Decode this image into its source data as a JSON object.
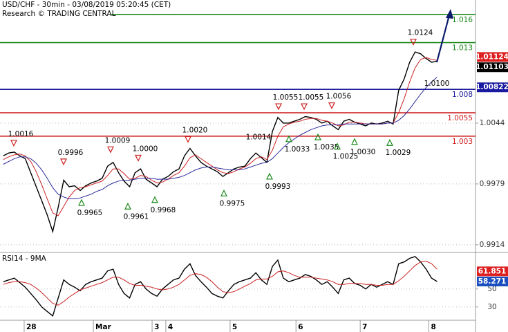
{
  "header": {
    "title": "USD/CHF - 30min - 03/08/2019 05:20:45 (CET)",
    "subtitle": "Research © TRADING CENTRAL"
  },
  "chart_data": [
    {
      "type": "line",
      "xlim": [
        -0.6,
        86
      ],
      "ylim": [
        0.99065,
        1.01755
      ],
      "yticks": [
        1.0044,
        0.9979,
        0.9914
      ],
      "grid": true,
      "series": [
        {
          "color": "#000000",
          "values": [
            1.0009,
            1.0012,
            1.0013,
            1.0009,
            1.0006,
            0.9991,
            0.9976,
            0.9961,
            0.9946,
            0.9928,
            0.9954,
            0.9983,
            0.9976,
            0.9977,
            0.9972,
            0.9977,
            0.998,
            0.9982,
            0.9985,
            0.9998,
            1.0002,
            0.9991,
            0.9982,
            0.9976,
            0.9991,
            0.9995,
            0.9984,
            0.998,
            0.9976,
            0.9984,
            0.9987,
            0.9992,
            0.9995,
            1.0009,
            1.0017,
            1.0009,
            1.0002,
            0.9998,
            0.9995,
            0.9992,
            0.9987,
            0.9991,
            0.9995,
            0.9997,
            0.9998,
            1.0006,
            1.0012,
            1.0007,
            1.0002,
            1.0035,
            1.005,
            1.0044,
            1.0044,
            1.0046,
            1.0048,
            1.0051,
            1.005,
            1.0048,
            1.0044,
            1.0046,
            1.0041,
            1.0037,
            1.0046,
            1.0048,
            1.0045,
            1.0043,
            1.0041,
            1.0044,
            1.0043,
            1.0044,
            1.0046,
            1.0043,
            1.0079,
            1.0091,
            1.0109,
            1.012,
            1.0118,
            1.0113,
            1.0109,
            1.011
          ]
        },
        {
          "color": "#cc2020",
          "values": [
            1.0005,
            1.0008,
            1.001,
            1.0011,
            1.0009,
            1.0003,
            0.9992,
            0.9978,
            0.9963,
            0.9948,
            0.9945,
            0.9955,
            0.9965,
            0.9972,
            0.9975,
            0.9976,
            0.9978,
            0.998,
            0.9982,
            0.9988,
            0.9995,
            0.9995,
            0.999,
            0.9984,
            0.9985,
            0.9988,
            0.9987,
            0.9983,
            0.998,
            0.9981,
            0.9984,
            0.9988,
            0.9991,
            0.9998,
            1.0007,
            1.001,
            1.0006,
            1.0002,
            0.9998,
            0.9994,
            0.9991,
            0.999,
            0.9992,
            0.9995,
            0.9997,
            1.0001,
            1.0006,
            1.0008,
            1.0005,
            1.0015,
            1.003,
            1.004,
            1.0043,
            1.0045,
            1.0046,
            1.0048,
            1.0049,
            1.0049,
            1.0047,
            1.0046,
            1.0044,
            1.0041,
            1.0042,
            1.0045,
            1.0045,
            1.0044,
            1.0043,
            1.0043,
            1.0043,
            1.0043,
            1.0044,
            1.0044,
            1.0055,
            1.007,
            1.0088,
            1.0103,
            1.0112,
            1.0114,
            1.0112,
            1.0111
          ]
        },
        {
          "color": "#2a2a9a",
          "values": [
            1.0,
            1.0003,
            1.0006,
            1.0008,
            1.0008,
            1.0006,
            1.0001,
            0.9994,
            0.9985,
            0.9975,
            0.9968,
            0.9965,
            0.9963,
            0.9963,
            0.9964,
            0.9966,
            0.9968,
            0.9971,
            0.9973,
            0.9977,
            0.998,
            0.9982,
            0.9983,
            0.9983,
            0.9984,
            0.9985,
            0.9985,
            0.9985,
            0.9984,
            0.9984,
            0.9984,
            0.9985,
            0.9986,
            0.9988,
            0.9991,
            0.9994,
            0.9996,
            0.9997,
            0.9997,
            0.9996,
            0.9995,
            0.9994,
            0.9994,
            0.9994,
            0.9995,
            0.9997,
            0.9999,
            1.0001,
            1.0002,
            1.0006,
            1.0012,
            1.0018,
            1.0023,
            1.0027,
            1.0031,
            1.0034,
            1.0037,
            1.0039,
            1.0041,
            1.0042,
            1.0042,
            1.0042,
            1.0043,
            1.0043,
            1.0043,
            1.0043,
            1.0043,
            1.0043,
            1.0043,
            1.0043,
            1.0044,
            1.0044,
            1.0047,
            1.0052,
            1.0059,
            1.0067,
            1.0075,
            1.0082,
            1.0088,
            1.0093
          ]
        }
      ],
      "levels": [
        {
          "value": 1.016,
          "color": "#1a8a1a"
        },
        {
          "value": 1.013,
          "color": "#1a8a1a"
        },
        {
          "value": 1.008,
          "color": "#1a1a9a"
        },
        {
          "value": 1.0055,
          "color": "#cc1a1a"
        },
        {
          "value": 1.003,
          "color": "#cc1a1a"
        }
      ],
      "price_boxes": [
        {
          "value": 1.01124,
          "color": "#dd2020"
        },
        {
          "value": 1.01103,
          "color": "#000000"
        },
        {
          "value": 1.00822,
          "color": "#1a1aa0"
        }
      ],
      "annotations": [
        {
          "value": 1.0016,
          "label": "1.0016"
        },
        {
          "value": 0.9996,
          "label": "0.9996"
        },
        {
          "value": 1.0009,
          "label": "1.0009"
        },
        {
          "value": 1.0,
          "label": "1.0000"
        },
        {
          "value": 1.002,
          "label": "1.0020"
        },
        {
          "value": 1.0014,
          "label": "1.0014"
        },
        {
          "value": 1.0055,
          "label": "1.0055"
        },
        {
          "value": 1.0055,
          "label": "1.0055"
        },
        {
          "value": 1.0056,
          "label": "1.0056"
        },
        {
          "value": 1.0124,
          "label": "1.0124"
        },
        {
          "value": 1.01,
          "label": "1.0100"
        },
        {
          "value": 0.9965,
          "label": "0.9965"
        },
        {
          "value": 0.9961,
          "label": "0.9961"
        },
        {
          "value": 0.9968,
          "label": "0.9968"
        },
        {
          "value": 0.9975,
          "label": "0.9975"
        },
        {
          "value": 0.9993,
          "label": "0.9993"
        },
        {
          "value": 1.0033,
          "label": "1.0033"
        },
        {
          "value": 1.0035,
          "label": "1.0035"
        },
        {
          "value": 1.0025,
          "label": "1.0025"
        },
        {
          "value": 1.003,
          "label": "1.0030"
        },
        {
          "value": 1.0029,
          "label": "1.0029"
        }
      ]
    },
    {
      "type": "line",
      "title": "RSI14 - 9MA",
      "xlim": [
        -0.6,
        86
      ],
      "ylim": [
        16,
        89
      ],
      "yticks": [
        30,
        50
      ],
      "grid": true,
      "xticks": [
        {
          "value": 3.8,
          "label": "28"
        },
        {
          "value": 16.4,
          "label": "Mar"
        },
        {
          "value": 27.1,
          "label": "3"
        },
        {
          "value": 29.6,
          "label": "4"
        },
        {
          "value": 41.3,
          "label": "5"
        },
        {
          "value": 53.3,
          "label": "6"
        },
        {
          "value": 65,
          "label": "7"
        },
        {
          "value": 77.5,
          "label": "8"
        }
      ],
      "series": [
        {
          "color": "#000000",
          "values": [
            58,
            60,
            62,
            57,
            52,
            45,
            38,
            30,
            25,
            20,
            40,
            60,
            55,
            52,
            48,
            55,
            58,
            60,
            62,
            70,
            72,
            55,
            45,
            40,
            55,
            58,
            50,
            45,
            42,
            50,
            55,
            60,
            62,
            72,
            78,
            65,
            58,
            52,
            45,
            42,
            40,
            48,
            55,
            58,
            60,
            62,
            68,
            60,
            55,
            75,
            82,
            62,
            58,
            60,
            62,
            66,
            64,
            60,
            55,
            58,
            52,
            45,
            60,
            62,
            56,
            54,
            50,
            55,
            52,
            55,
            58,
            55,
            78,
            80,
            84,
            86,
            80,
            72,
            62,
            58.271
          ]
        },
        {
          "color": "#cc2020",
          "values": [
            55,
            57,
            58,
            58,
            57,
            55,
            51,
            46,
            40,
            34,
            32,
            36,
            41,
            45,
            49,
            51,
            53,
            55,
            57,
            60,
            63,
            63,
            60,
            56,
            54,
            54,
            53,
            52,
            50,
            49,
            50,
            52,
            55,
            60,
            65,
            67,
            66,
            63,
            58,
            52,
            47,
            46,
            47,
            50,
            53,
            56,
            60,
            61,
            61,
            64,
            69,
            70,
            68,
            65,
            63,
            63,
            63,
            62,
            61,
            60,
            58,
            55,
            55,
            56,
            56,
            56,
            55,
            55,
            54,
            54,
            55,
            55,
            59,
            64,
            70,
            76,
            80,
            81,
            78,
            72
          ]
        }
      ],
      "value_boxes": [
        {
          "value": 61.851,
          "color": "#dd2020"
        },
        {
          "value": 58.271,
          "color": "#1a4fc0"
        }
      ]
    }
  ]
}
